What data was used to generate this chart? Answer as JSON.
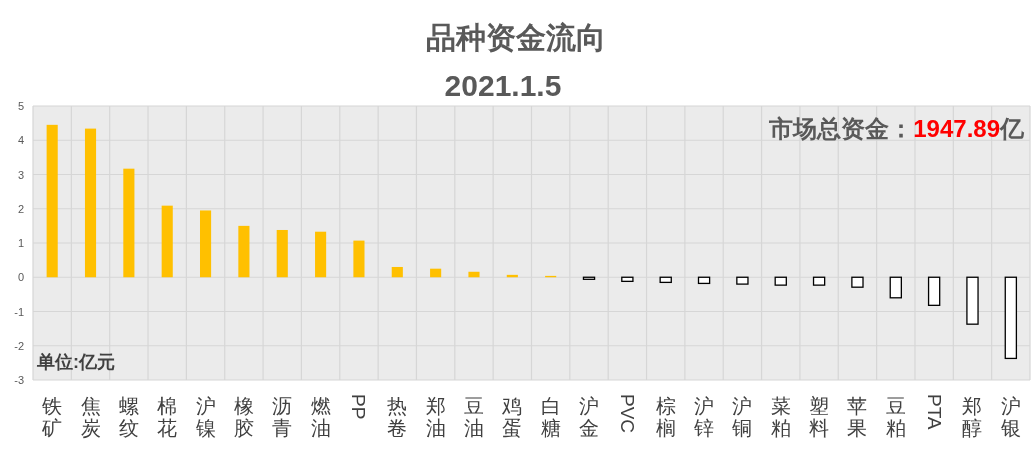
{
  "chart_data": {
    "type": "bar",
    "title": "品种资金流向",
    "subtitle": "2021.1.5",
    "categories": [
      "铁矿",
      "焦炭",
      "螺纹",
      "棉花",
      "沪镍",
      "橡胶",
      "沥青",
      "燃油",
      "PP",
      "热卷",
      "郑油",
      "豆油",
      "鸡蛋",
      "白糖",
      "沪金",
      "PVC",
      "棕榈",
      "沪锌",
      "沪铜",
      "菜粕",
      "塑料",
      "苹果",
      "豆粕",
      "PTA",
      "郑醇",
      "沪银"
    ],
    "values": [
      4.45,
      4.34,
      3.17,
      2.09,
      1.95,
      1.5,
      1.38,
      1.33,
      1.07,
      0.3,
      0.25,
      0.16,
      0.07,
      0.04,
      -0.06,
      -0.12,
      -0.15,
      -0.18,
      -0.2,
      -0.23,
      -0.23,
      -0.29,
      -0.6,
      -0.82,
      -1.37,
      -2.37
    ],
    "colors": [
      "#ffc000",
      "#ffc000",
      "#ffc000",
      "#ffc000",
      "#ffc000",
      "#ffc000",
      "#ffc000",
      "#ffc000",
      "#ffc000",
      "#ffc000",
      "#ffc000",
      "#ffc000",
      "#ffc000",
      "#ffc000",
      "#ffffff",
      "#ffffff",
      "#ffffff",
      "#ffffff",
      "#ffffff",
      "#ffffff",
      "#ffffff",
      "#ffffff",
      "#ffffff",
      "#ffffff",
      "#ffffff",
      "#ffffff"
    ],
    "ylim": [
      -3,
      5
    ],
    "yticks": [
      -3,
      -2,
      -1,
      0,
      1,
      2,
      3,
      4,
      5
    ],
    "grid": true,
    "annotations": [
      "市场总资金：1947.89亿",
      "单位:亿元"
    ]
  }
}
